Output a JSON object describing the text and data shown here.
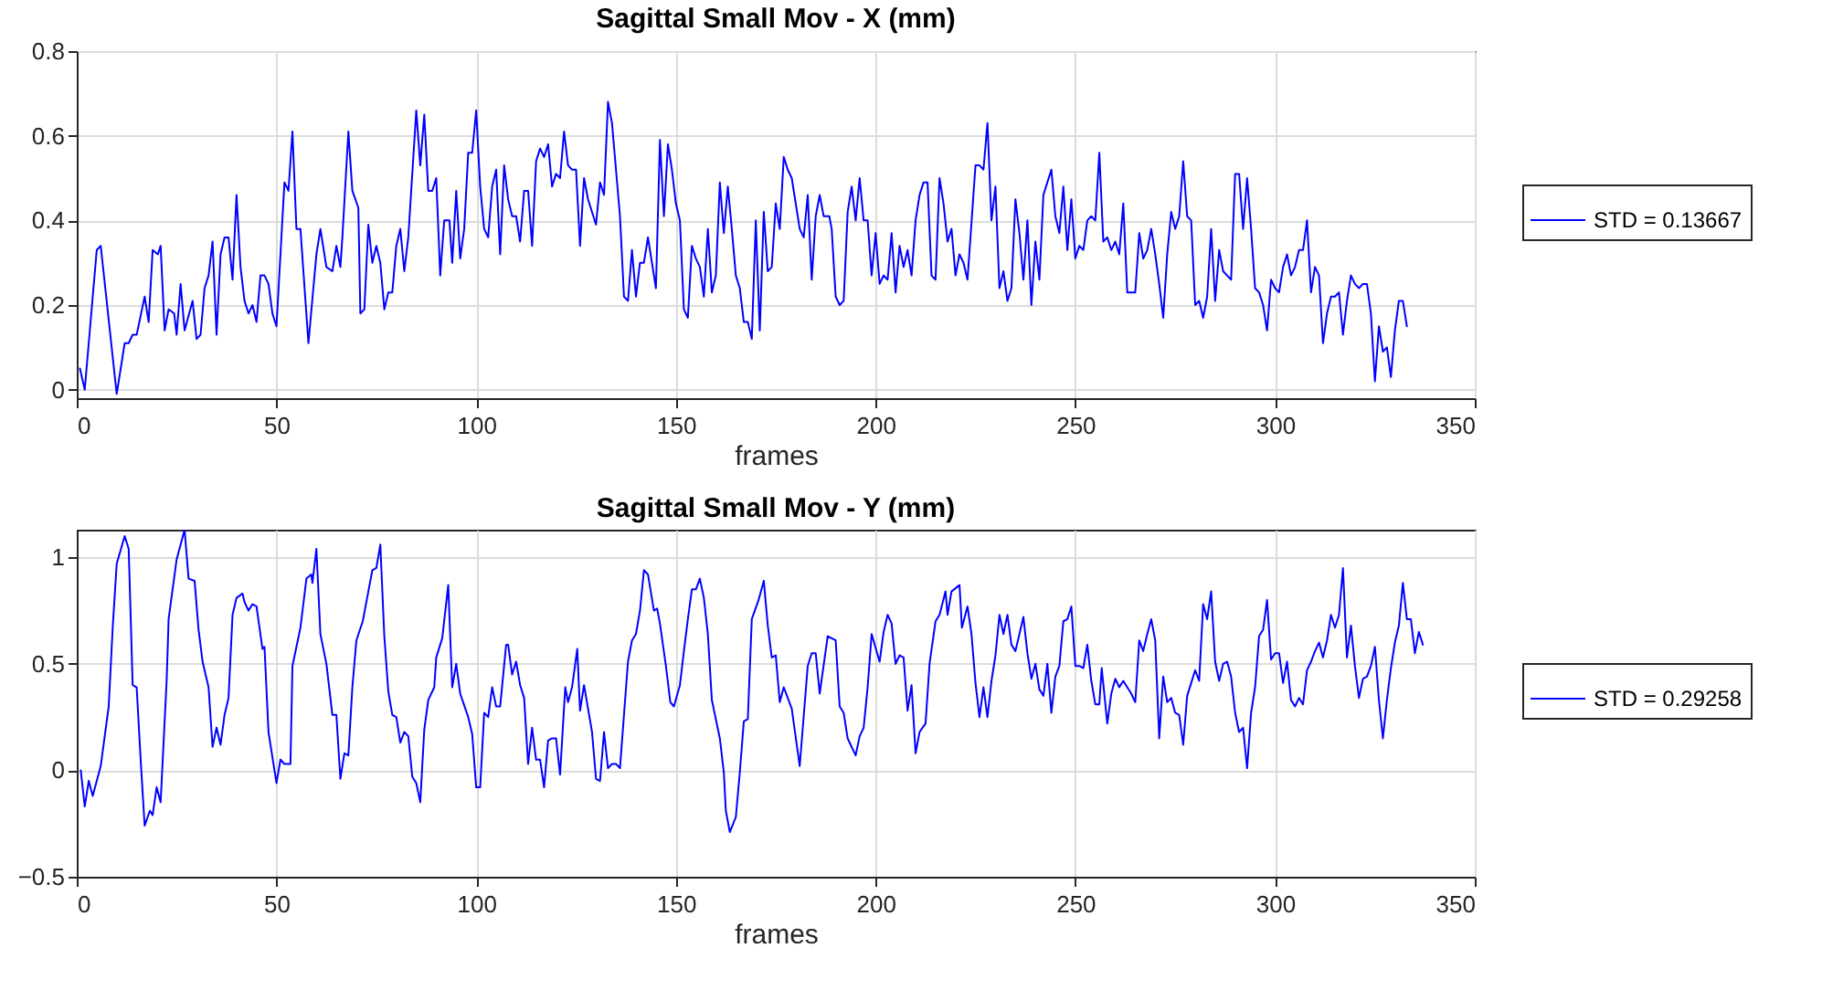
{
  "chart_data": [
    {
      "type": "line",
      "title": "Sagittal Small Mov  -  X (mm)",
      "xlabel": "frames",
      "xlim": [
        0,
        350
      ],
      "xticks": [
        0,
        50,
        100,
        150,
        200,
        250,
        300,
        350
      ],
      "ylim": [
        -0.02,
        0.8
      ],
      "yticks": [
        0,
        0.2,
        0.4,
        0.6,
        0.8
      ],
      "grid": true,
      "legend": "right",
      "x": [
        0.8,
        2,
        5,
        6,
        10,
        12,
        13,
        14,
        15,
        17,
        18,
        19,
        20.3,
        21,
        22,
        23,
        24.4,
        25,
        26,
        27,
        29,
        30,
        31,
        32,
        33,
        34,
        35,
        36,
        37,
        38,
        39,
        40,
        41,
        42,
        43,
        44,
        45,
        46,
        47,
        48,
        49,
        50,
        52,
        53,
        54,
        55,
        56,
        58,
        60,
        61,
        62.5,
        64,
        65,
        66,
        66.5,
        68,
        69,
        70.5,
        71,
        72,
        73,
        74,
        75,
        76,
        77,
        78,
        79,
        80,
        81,
        82,
        83,
        85,
        86,
        87,
        88,
        89,
        90,
        91,
        92,
        93.3,
        94,
        95,
        96,
        97,
        98,
        99,
        100,
        101,
        102,
        103,
        104,
        105,
        106,
        107,
        108,
        109,
        110,
        111,
        112,
        113,
        114,
        115,
        116,
        117,
        118,
        119,
        120,
        121,
        122,
        123,
        124,
        125,
        126,
        127,
        128,
        130,
        131,
        132,
        133,
        134,
        136,
        137,
        138,
        139,
        140,
        141,
        142,
        143,
        145,
        146,
        147,
        148,
        149,
        150,
        151,
        152,
        153,
        154,
        155,
        156,
        157,
        158,
        159,
        160,
        161,
        162,
        163,
        164,
        165,
        166,
        167,
        168,
        169,
        170,
        171,
        172,
        173,
        174,
        175,
        176,
        177,
        178,
        179,
        181,
        182,
        183,
        184,
        185,
        186,
        187,
        188.4,
        189,
        190,
        191,
        192,
        193,
        194,
        195,
        196,
        197,
        198,
        199,
        200,
        201,
        202,
        203,
        204,
        205,
        206,
        207,
        208,
        209,
        210,
        211,
        212,
        213,
        214,
        215,
        216,
        217,
        218,
        219,
        220,
        221,
        222,
        223,
        225,
        226,
        227,
        228,
        229,
        230,
        231,
        232,
        233,
        234,
        235,
        236,
        237,
        238,
        239,
        240,
        241,
        242,
        243,
        244,
        245,
        246,
        247,
        248,
        249,
        250,
        251,
        252,
        253,
        254,
        255,
        256,
        257,
        258,
        259,
        260,
        261,
        262,
        263,
        264,
        265,
        266,
        267,
        268,
        269,
        270,
        271,
        272,
        273,
        274,
        275,
        276,
        277,
        278,
        279,
        280,
        281,
        282,
        283,
        284,
        285,
        286,
        287,
        288,
        289,
        290,
        291,
        292,
        293,
        294,
        295,
        296,
        297,
        298,
        299,
        300,
        301,
        302,
        303,
        304,
        305,
        306,
        307,
        308,
        309,
        310,
        311,
        312,
        313,
        314,
        315,
        316,
        317,
        318,
        319,
        320,
        321,
        322,
        323,
        324,
        325,
        326,
        327,
        328,
        329,
        330,
        331,
        332,
        333
      ],
      "series": [
        {
          "name": "STD = 0.13667",
          "color": "#0000ff",
          "values": [
            0.05,
            0,
            0.33,
            0.34,
            -0.01,
            0.11,
            0.11,
            0.13,
            0.13,
            0.22,
            0.16,
            0.33,
            0.32,
            0.34,
            0.14,
            0.19,
            0.18,
            0.13,
            0.25,
            0.14,
            0.21,
            0.12,
            0.13,
            0.24,
            0.27,
            0.35,
            0.13,
            0.32,
            0.36,
            0.36,
            0.26,
            0.46,
            0.29,
            0.21,
            0.18,
            0.2,
            0.16,
            0.27,
            0.27,
            0.25,
            0.18,
            0.15,
            0.49,
            0.47,
            0.61,
            0.38,
            0.38,
            0.11,
            0.32,
            0.38,
            0.29,
            0.28,
            0.34,
            0.29,
            0.36,
            0.61,
            0.47,
            0.43,
            0.18,
            0.19,
            0.39,
            0.3,
            0.34,
            0.3,
            0.19,
            0.23,
            0.23,
            0.34,
            0.38,
            0.28,
            0.36,
            0.66,
            0.53,
            0.65,
            0.47,
            0.47,
            0.5,
            0.27,
            0.4,
            0.4,
            0.3,
            0.47,
            0.31,
            0.38,
            0.56,
            0.56,
            0.66,
            0.48,
            0.38,
            0.36,
            0.48,
            0.52,
            0.32,
            0.53,
            0.45,
            0.41,
            0.41,
            0.35,
            0.47,
            0.47,
            0.34,
            0.54,
            0.57,
            0.55,
            0.58,
            0.48,
            0.51,
            0.5,
            0.61,
            0.53,
            0.52,
            0.52,
            0.34,
            0.5,
            0.45,
            0.39,
            0.49,
            0.46,
            0.68,
            0.63,
            0.41,
            0.22,
            0.21,
            0.33,
            0.22,
            0.3,
            0.3,
            0.36,
            0.24,
            0.59,
            0.41,
            0.58,
            0.52,
            0.44,
            0.4,
            0.19,
            0.17,
            0.34,
            0.31,
            0.29,
            0.22,
            0.38,
            0.23,
            0.27,
            0.49,
            0.37,
            0.48,
            0.38,
            0.27,
            0.24,
            0.16,
            0.16,
            0.12,
            0.4,
            0.14,
            0.42,
            0.28,
            0.29,
            0.44,
            0.38,
            0.55,
            0.52,
            0.5,
            0.38,
            0.36,
            0.46,
            0.26,
            0.41,
            0.46,
            0.41,
            0.41,
            0.38,
            0.22,
            0.2,
            0.21,
            0.42,
            0.48,
            0.4,
            0.5,
            0.4,
            0.4,
            0.27,
            0.37,
            0.25,
            0.27,
            0.26,
            0.37,
            0.23,
            0.34,
            0.29,
            0.33,
            0.27,
            0.4,
            0.46,
            0.49,
            0.49,
            0.27,
            0.26,
            0.5,
            0.44,
            0.35,
            0.38,
            0.27,
            0.32,
            0.3,
            0.26,
            0.53,
            0.53,
            0.52,
            0.63,
            0.4,
            0.48,
            0.24,
            0.28,
            0.21,
            0.24,
            0.45,
            0.37,
            0.26,
            0.4,
            0.2,
            0.35,
            0.26,
            0.46,
            0.49,
            0.52,
            0.41,
            0.37,
            0.48,
            0.33,
            0.45,
            0.31,
            0.34,
            0.33,
            0.4,
            0.41,
            0.4,
            0.56,
            0.35,
            0.36,
            0.33,
            0.35,
            0.32,
            0.44,
            0.23,
            0.23,
            0.23,
            0.37,
            0.31,
            0.33,
            0.38,
            0.32,
            0.25,
            0.17,
            0.32,
            0.42,
            0.38,
            0.41,
            0.54,
            0.41,
            0.4,
            0.2,
            0.21,
            0.17,
            0.22,
            0.38,
            0.21,
            0.33,
            0.28,
            0.27,
            0.26,
            0.51,
            0.51,
            0.38,
            0.5,
            0.38,
            0.24,
            0.23,
            0.2,
            0.14,
            0.26,
            0.24,
            0.23,
            0.29,
            0.32,
            0.27,
            0.29,
            0.33,
            0.33,
            0.4,
            0.23,
            0.29,
            0.27,
            0.11,
            0.18,
            0.22,
            0.22,
            0.23,
            0.13,
            0.21,
            0.27,
            0.25,
            0.24,
            0.25,
            0.25,
            0.18,
            0.02,
            0.15,
            0.09,
            0.1,
            0.03,
            0.14,
            0.21,
            0.21,
            0.15
          ]
        }
      ]
    },
    {
      "type": "line",
      "title": "Sagittal Small Mov  -  Y (mm)",
      "xlabel": "frames",
      "xlim": [
        0,
        350
      ],
      "xticks": [
        0,
        50,
        100,
        150,
        200,
        250,
        300,
        350
      ],
      "ylim": [
        -0.5,
        1.13
      ],
      "yticks": [
        -0.5,
        0,
        0.5,
        1
      ],
      "grid": true,
      "legend": "right",
      "x": [
        1,
        2,
        3,
        4,
        6,
        8,
        9,
        10,
        12,
        13,
        14,
        15,
        16,
        17,
        18.3,
        19,
        20,
        21,
        22.5,
        23,
        25,
        27,
        28,
        29.5,
        30.5,
        31.5,
        33,
        34,
        35,
        36,
        37,
        38,
        39,
        40,
        41.5,
        42,
        43,
        44,
        45,
        46.5,
        47,
        48,
        50,
        51,
        52,
        53.5,
        54,
        56,
        57.5,
        58.7,
        59,
        60,
        61,
        62.5,
        64,
        65,
        66,
        67,
        68,
        69,
        70,
        71.6,
        73,
        74,
        75,
        76,
        77,
        78,
        79,
        80,
        81,
        82,
        83,
        84,
        85,
        86,
        87,
        88,
        89.5,
        90,
        91.5,
        93,
        94,
        95,
        96,
        98,
        99,
        100,
        101,
        102,
        103,
        104,
        105,
        106,
        107.5,
        108,
        109,
        110,
        111,
        112,
        113,
        114,
        115,
        116,
        117,
        118,
        119,
        120,
        121,
        122.3,
        123,
        124,
        125.3,
        126,
        127,
        128,
        129,
        130,
        131,
        132,
        133,
        134,
        135,
        136,
        138,
        139,
        140,
        141,
        142,
        143,
        144.5,
        145.3,
        146,
        147.5,
        148.6,
        149.5,
        151,
        152,
        153,
        154,
        155,
        156,
        157,
        158,
        159,
        161,
        162,
        162.5,
        163.5,
        165,
        166,
        167,
        168,
        169,
        170.7,
        172,
        173,
        174,
        175,
        176,
        177,
        179,
        181,
        183,
        184,
        185,
        186,
        188,
        189,
        190,
        191,
        192,
        193,
        195,
        196,
        197,
        198,
        199,
        201,
        202,
        203,
        204,
        205,
        206,
        207,
        208,
        209,
        210,
        211,
        212.5,
        213.5,
        215,
        216,
        217.5,
        218,
        219,
        221,
        221.6,
        223,
        224,
        225,
        226,
        227,
        228,
        229,
        230,
        231,
        232,
        233,
        234,
        235,
        236,
        237,
        238,
        239,
        240,
        241,
        242,
        243,
        244,
        245,
        246,
        247,
        248,
        249,
        250,
        251,
        252,
        253,
        254,
        255,
        256,
        256.6,
        258,
        259,
        260,
        261,
        262,
        263,
        264,
        265,
        266,
        267,
        268,
        269,
        270,
        271,
        272,
        273,
        274,
        275,
        276,
        277,
        278,
        279,
        280,
        281,
        282,
        283,
        284,
        285,
        286,
        287,
        288,
        289,
        290,
        291,
        292,
        293,
        294,
        295,
        296,
        297,
        298,
        299,
        300,
        301,
        302,
        303,
        304,
        305,
        306,
        307,
        308,
        309,
        310,
        311,
        312,
        313,
        314,
        315,
        316,
        317,
        318,
        319,
        320,
        321,
        322,
        323,
        324,
        325,
        326,
        327,
        328,
        329,
        330,
        331,
        332,
        333,
        334,
        335,
        336,
        337
      ],
      "series": [
        {
          "name": "STD = 0.29258",
          "color": "#0000ff",
          "values": [
            0,
            -0.17,
            -0.05,
            -0.12,
            0.02,
            0.3,
            0.67,
            0.97,
            1.1,
            1.04,
            0.4,
            0.39,
            0.05,
            -0.26,
            -0.19,
            -0.21,
            -0.08,
            -0.15,
            0.42,
            0.71,
            0.99,
            1.13,
            0.9,
            0.89,
            0.66,
            0.51,
            0.39,
            0.11,
            0.2,
            0.12,
            0.26,
            0.34,
            0.73,
            0.81,
            0.83,
            0.79,
            0.75,
            0.78,
            0.77,
            0.57,
            0.58,
            0.18,
            -0.06,
            0.05,
            0.03,
            0.03,
            0.49,
            0.67,
            0.9,
            0.92,
            0.88,
            1.04,
            0.64,
            0.5,
            0.26,
            0.26,
            -0.04,
            0.08,
            0.07,
            0.39,
            0.61,
            0.7,
            0.84,
            0.94,
            0.95,
            1.06,
            0.63,
            0.37,
            0.26,
            0.25,
            0.13,
            0.18,
            0.16,
            -0.03,
            -0.06,
            -0.15,
            0.19,
            0.33,
            0.39,
            0.53,
            0.62,
            0.87,
            0.39,
            0.5,
            0.36,
            0.25,
            0.17,
            -0.08,
            -0.08,
            0.27,
            0.25,
            0.39,
            0.3,
            0.3,
            0.59,
            0.59,
            0.45,
            0.51,
            0.4,
            0.34,
            0.03,
            0.2,
            0.05,
            0.05,
            -0.08,
            0.14,
            0.15,
            0.15,
            -0.02,
            0.39,
            0.32,
            0.39,
            0.57,
            0.28,
            0.4,
            0.29,
            0.18,
            -0.04,
            -0.05,
            0.18,
            0.01,
            0.03,
            0.03,
            0.01,
            0.51,
            0.61,
            0.64,
            0.75,
            0.94,
            0.92,
            0.75,
            0.76,
            0.69,
            0.49,
            0.32,
            0.3,
            0.4,
            0.56,
            0.71,
            0.85,
            0.85,
            0.9,
            0.81,
            0.64,
            0.33,
            0.15,
            -0.01,
            -0.19,
            -0.29,
            -0.22,
            -0.01,
            0.23,
            0.24,
            0.71,
            0.8,
            0.89,
            0.68,
            0.53,
            0.54,
            0.32,
            0.39,
            0.29,
            0.02,
            0.49,
            0.55,
            0.55,
            0.36,
            0.63,
            0.62,
            0.61,
            0.3,
            0.27,
            0.15,
            0.07,
            0.16,
            0.2,
            0.39,
            0.64,
            0.51,
            0.65,
            0.73,
            0.69,
            0.5,
            0.54,
            0.53,
            0.28,
            0.4,
            0.08,
            0.18,
            0.22,
            0.5,
            0.7,
            0.73,
            0.84,
            0.73,
            0.84,
            0.87,
            0.67,
            0.77,
            0.64,
            0.41,
            0.25,
            0.39,
            0.25,
            0.42,
            0.54,
            0.73,
            0.64,
            0.73,
            0.59,
            0.56,
            0.64,
            0.72,
            0.55,
            0.43,
            0.5,
            0.38,
            0.35,
            0.5,
            0.27,
            0.44,
            0.49,
            0.7,
            0.71,
            0.77,
            0.49,
            0.49,
            0.48,
            0.59,
            0.42,
            0.31,
            0.31,
            0.48,
            0.22,
            0.36,
            0.43,
            0.39,
            0.42,
            0.39,
            0.36,
            0.32,
            0.61,
            0.56,
            0.64,
            0.71,
            0.61,
            0.15,
            0.44,
            0.32,
            0.34,
            0.27,
            0.26,
            0.12,
            0.35,
            0.41,
            0.47,
            0.42,
            0.78,
            0.71,
            0.84,
            0.51,
            0.42,
            0.5,
            0.51,
            0.44,
            0.27,
            0.18,
            0.2,
            0.01,
            0.27,
            0.39,
            0.63,
            0.66,
            0.8,
            0.52,
            0.55,
            0.55,
            0.41,
            0.51,
            0.33,
            0.3,
            0.34,
            0.31,
            0.47,
            0.51,
            0.56,
            0.6,
            0.53,
            0.61,
            0.73,
            0.67,
            0.73,
            0.95,
            0.53,
            0.68,
            0.49,
            0.34,
            0.43,
            0.44,
            0.49,
            0.58,
            0.33,
            0.15,
            0.33,
            0.48,
            0.6,
            0.68,
            0.88,
            0.71,
            0.71,
            0.55,
            0.65,
            0.59
          ]
        }
      ]
    }
  ]
}
